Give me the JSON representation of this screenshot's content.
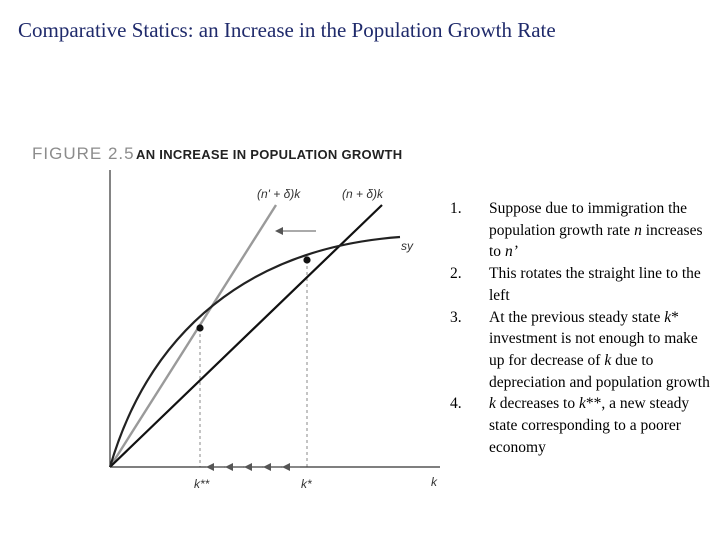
{
  "title": "Comparative Statics: an Increase in the Population Growth Rate",
  "figure": {
    "label": "FIGURE 2.5",
    "caption": "AN INCREASE IN POPULATION GROWTH",
    "labels": {
      "new_line": "(n' + δ)k",
      "old_line": "(n + δ)k",
      "savings": "sy",
      "k_new": "k**",
      "k_old": "k*",
      "k_axis": "k"
    },
    "colors": {
      "new_line": "#9a9a9a",
      "old_line": "#111111",
      "savings": "#222222",
      "axes": "#333333",
      "guides": "#8a8a8a"
    }
  },
  "steps": [
    {
      "num": "1.",
      "segments": [
        {
          "text": "Suppose due to immigration the population growth rate ",
          "italic": false
        },
        {
          "text": "n",
          "italic": true
        },
        {
          "text": " increases to ",
          "italic": false
        },
        {
          "text": "n’",
          "italic": true
        }
      ]
    },
    {
      "num": "2.",
      "segments": [
        {
          "text": "This rotates the straight line to the left",
          "italic": false
        }
      ]
    },
    {
      "num": "3.",
      "segments": [
        {
          "text": "At the previous steady state ",
          "italic": false
        },
        {
          "text": "k",
          "italic": true
        },
        {
          "text": "* investment is not enough to make up for decrease of ",
          "italic": false
        },
        {
          "text": "k",
          "italic": true
        },
        {
          "text": " due to depreciation and population growth",
          "italic": false
        }
      ]
    },
    {
      "num": "4.",
      "segments": [
        {
          "text": "k",
          "italic": true
        },
        {
          "text": " decreases to ",
          "italic": false
        },
        {
          "text": "k",
          "italic": true
        },
        {
          "text": "**, a new steady state corresponding to a poorer economy",
          "italic": false
        }
      ]
    }
  ]
}
